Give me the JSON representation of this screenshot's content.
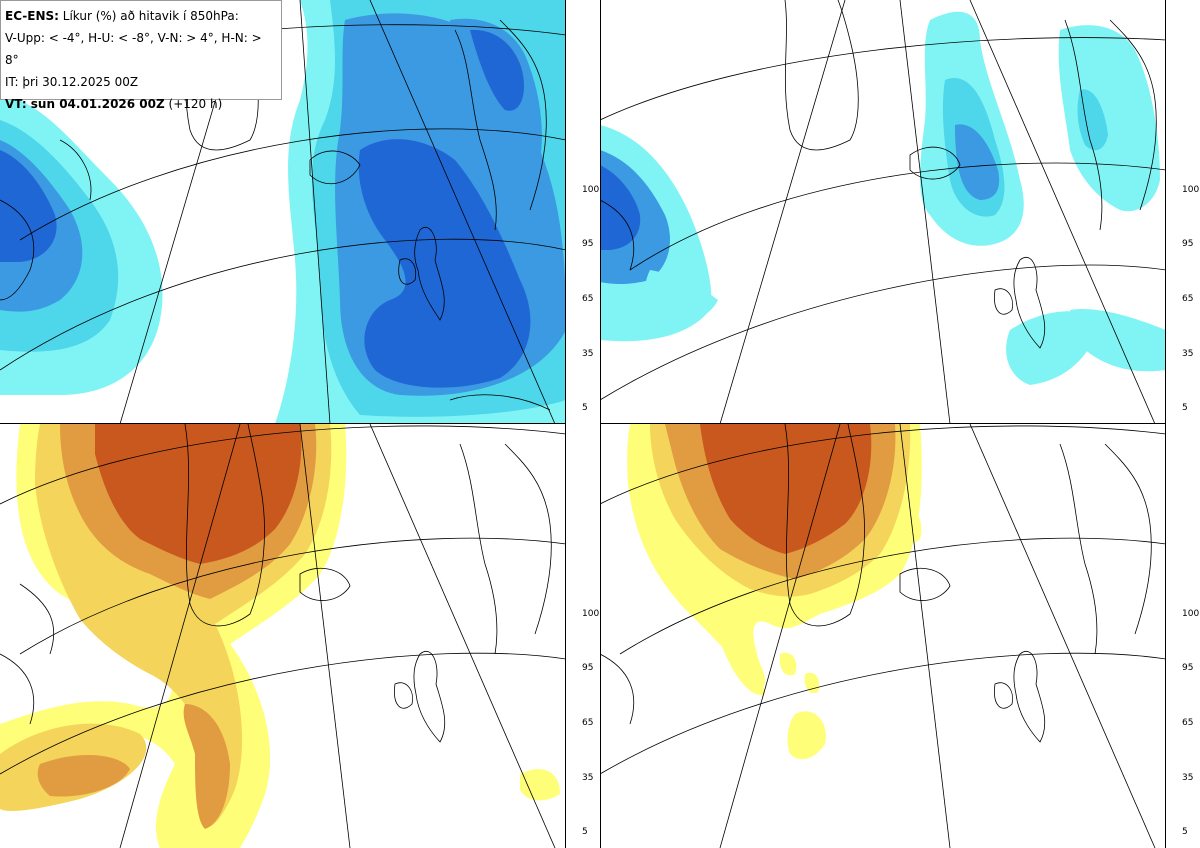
{
  "header": {
    "title_bold": "EC-ENS:",
    "title_rest": " Líkur (%) að hitavik í 850hPa:",
    "thresholds": "V-Upp: < -4°, H-U: < -8°, V-N: > 4°, H-N: > 8°",
    "initial_time": "IT: þri 30.12.2025 00Z",
    "valid_bold": "VT: sun 04.01.2026 00Z",
    "valid_rest": " (+120 h)"
  },
  "colorbar_labels": [
    "100",
    "95",
    "65",
    "35",
    "5"
  ],
  "colors": {
    "cold": [
      "#80f4f4",
      "#4ed6ea",
      "#3b9ae2",
      "#2067d6"
    ],
    "warm": [
      "#fefe78",
      "#f4d45a",
      "#e19b41",
      "#c8581e"
    ]
  },
  "panels": [
    {
      "name": "top-left",
      "variable": "V-Upp"
    },
    {
      "name": "top-right",
      "variable": "H-U"
    },
    {
      "name": "bottom-left",
      "variable": "V-N"
    },
    {
      "name": "bottom-right",
      "variable": "H-N"
    }
  ]
}
